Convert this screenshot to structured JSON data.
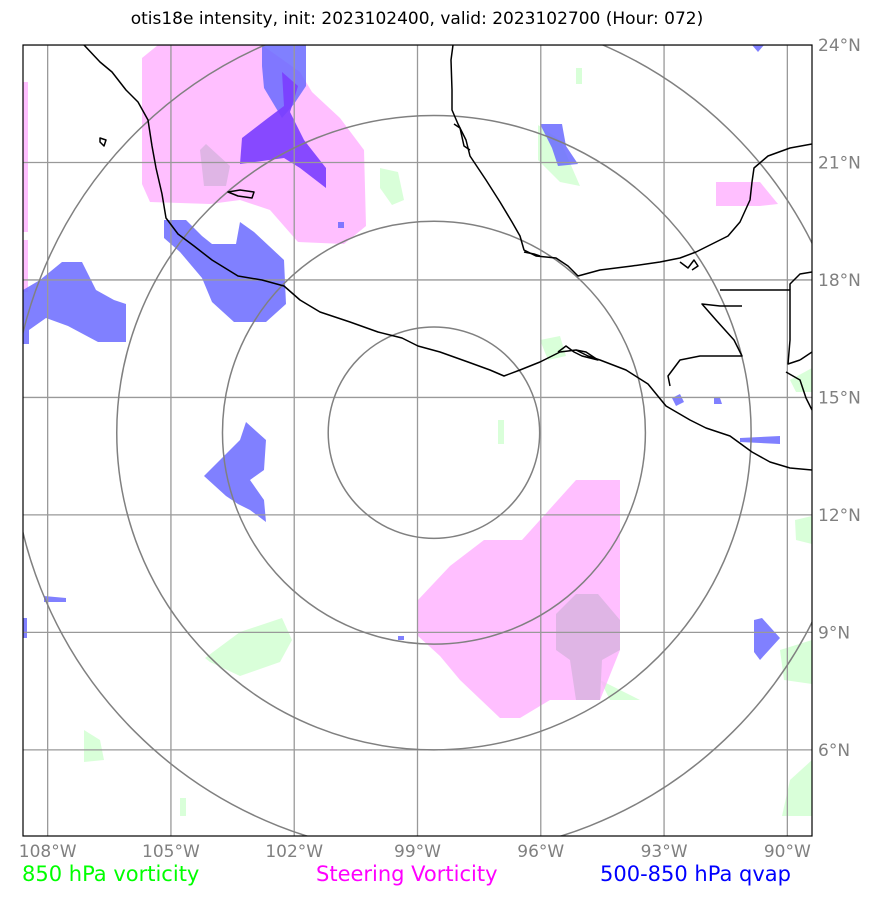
{
  "title": "otis18e intensity, init: 2023102400, valid: 2023102700 (Hour: 072)",
  "map": {
    "lon_range": [
      -108.6,
      -89.4
    ],
    "lat_range": [
      3.8,
      24.0
    ],
    "center": {
      "lon": -98.6,
      "lat": 14.1
    },
    "range_rings_deg": [
      2.7,
      5.4,
      8.1,
      10.8
    ],
    "gridlines": true,
    "lon_ticks": [
      "108°W",
      "105°W",
      "102°W",
      "99°W",
      "96°W",
      "93°W",
      "90°W"
    ],
    "lat_ticks": [
      "24°N",
      "21°N",
      "18°N",
      "15°N",
      "12°N",
      "9°N",
      "6°N"
    ],
    "colors": {
      "vorticity_850": "#ccffcc",
      "steering_vorticity": "#ffaaff",
      "qvap_500_850": "#6a6aff",
      "qvap_dark": "#7a3cff",
      "coastline": "#000000",
      "grid": "#999999",
      "rings": "#808080"
    }
  },
  "legend": [
    {
      "label": "850 hPa vorticity",
      "color": "#00ff00"
    },
    {
      "label": "Steering Vorticity",
      "color": "#ff00ff"
    },
    {
      "label": "500-850 hPa qvap",
      "color": "#0000ff"
    }
  ]
}
